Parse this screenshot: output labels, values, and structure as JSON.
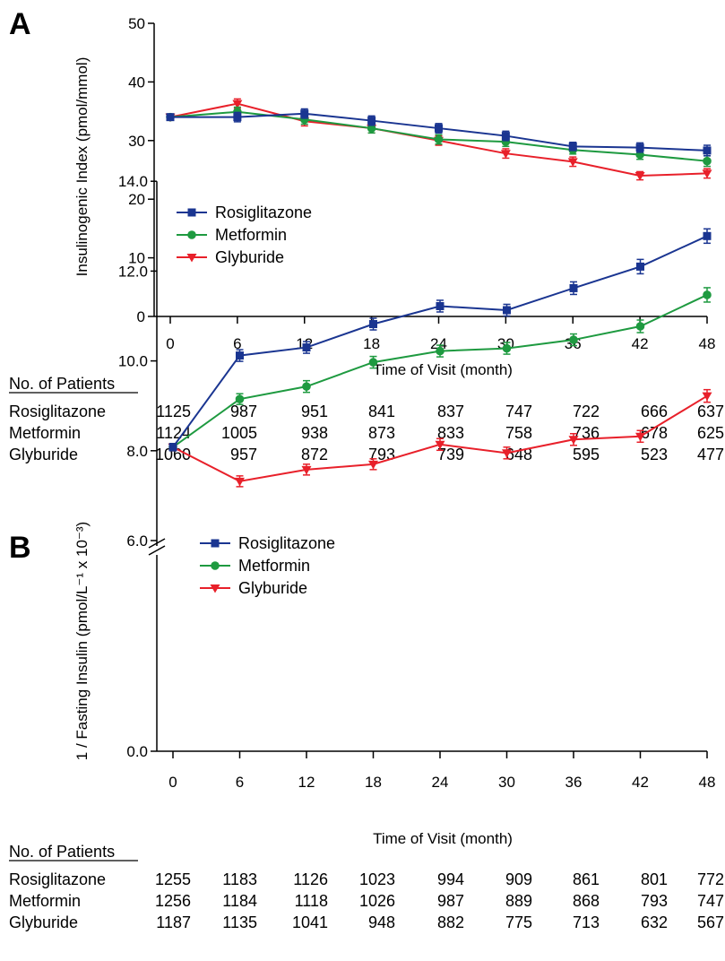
{
  "chart_data": [
    {
      "panel_label": "A",
      "type": "line",
      "ylabel": "Insulinogenic Index (pmol/mmol)",
      "xlabel": "Time of Visit (month)",
      "x": [
        0,
        6,
        12,
        18,
        24,
        30,
        36,
        42,
        48
      ],
      "xticks": [
        "0",
        "6",
        "12",
        "18",
        "24",
        "30",
        "36",
        "42",
        "48"
      ],
      "ylim": [
        0,
        50
      ],
      "yticks": [
        "0",
        "10",
        "20",
        "30",
        "40",
        "50"
      ],
      "ytick_values": [
        0,
        10,
        20,
        30,
        40,
        50
      ],
      "axis_break": false,
      "legend_position": "left",
      "series": [
        {
          "name": "Rosiglitazone",
          "color": "#1a3591",
          "marker": "square",
          "values": [
            34.0,
            34.0,
            34.6,
            33.4,
            32.1,
            30.8,
            29.0,
            28.8,
            28.3
          ],
          "errors": [
            0.5,
            0.8,
            0.8,
            0.8,
            0.8,
            0.8,
            0.7,
            0.8,
            0.9
          ]
        },
        {
          "name": "Metformin",
          "color": "#1e9a40",
          "marker": "circle",
          "values": [
            34.0,
            34.9,
            33.6,
            32.1,
            30.2,
            29.8,
            28.4,
            27.6,
            26.5
          ],
          "errors": [
            0.5,
            0.8,
            0.8,
            0.8,
            0.8,
            0.8,
            0.7,
            0.8,
            0.9
          ]
        },
        {
          "name": "Glyburide",
          "color": "#e8202a",
          "marker": "triangle-down",
          "values": [
            34.0,
            36.3,
            33.3,
            32.1,
            30.0,
            27.8,
            26.4,
            24.0,
            24.4
          ],
          "errors": [
            0.5,
            0.8,
            0.8,
            0.8,
            0.8,
            0.8,
            0.8,
            0.7,
            0.8
          ]
        }
      ],
      "patients": {
        "title": "No. of Patients",
        "rows": [
          {
            "name": "Rosiglitazone",
            "counts": [
              "1125",
              "987",
              "951",
              "841",
              "837",
              "747",
              "722",
              "666",
              "637"
            ]
          },
          {
            "name": "Metformin",
            "counts": [
              "1124",
              "1005",
              "938",
              "873",
              "833",
              "758",
              "736",
              "678",
              "625"
            ]
          },
          {
            "name": "Glyburide",
            "counts": [
              "1060",
              "957",
              "872",
              "793",
              "739",
              "648",
              "595",
              "523",
              "477"
            ]
          }
        ]
      }
    },
    {
      "panel_label": "B",
      "type": "line",
      "ylabel": "1 / Fasting Insulin (pmol/L⁻¹ x 10⁻³)",
      "xlabel": "Time of Visit (month)",
      "x": [
        0,
        6,
        12,
        18,
        24,
        30,
        36,
        42,
        48
      ],
      "xticks": [
        "0",
        "6",
        "12",
        "18",
        "24",
        "30",
        "36",
        "42",
        "48"
      ],
      "ylim": [
        6.0,
        14.0
      ],
      "yticks": [
        "6.0",
        "8.0",
        "10.0",
        "12.0",
        "14.0"
      ],
      "ytick_values": [
        6,
        8,
        10,
        12,
        14
      ],
      "axis_break": true,
      "axis_break_label": "0.0",
      "legend_position": "top-left",
      "series": [
        {
          "name": "Rosiglitazone",
          "color": "#1a3591",
          "marker": "square",
          "values": [
            8.08,
            10.12,
            10.3,
            10.82,
            11.22,
            11.13,
            11.62,
            12.1,
            12.78
          ],
          "errors": [
            0.08,
            0.13,
            0.13,
            0.13,
            0.13,
            0.13,
            0.14,
            0.16,
            0.16
          ]
        },
        {
          "name": "Metformin",
          "color": "#1e9a40",
          "marker": "circle",
          "values": [
            8.08,
            9.15,
            9.43,
            9.97,
            10.22,
            10.28,
            10.47,
            10.77,
            11.47
          ],
          "errors": [
            0.08,
            0.12,
            0.13,
            0.13,
            0.13,
            0.13,
            0.13,
            0.14,
            0.16
          ]
        },
        {
          "name": "Glyburide",
          "color": "#e8202a",
          "marker": "triangle-down",
          "values": [
            8.08,
            7.32,
            7.58,
            7.7,
            8.14,
            7.95,
            8.25,
            8.32,
            9.22
          ],
          "errors": [
            0.08,
            0.12,
            0.12,
            0.12,
            0.13,
            0.13,
            0.13,
            0.13,
            0.14
          ]
        }
      ],
      "patients": {
        "title": "No. of Patients",
        "rows": [
          {
            "name": "Rosiglitazone",
            "counts": [
              "1255",
              "1183",
              "1126",
              "1023",
              "994",
              "909",
              "861",
              "801",
              "772"
            ]
          },
          {
            "name": "Metformin",
            "counts": [
              "1256",
              "1184",
              "1118",
              "1026",
              "987",
              "889",
              "868",
              "793",
              "747"
            ]
          },
          {
            "name": "Glyburide",
            "counts": [
              "1187",
              "1135",
              "1041",
              "948",
              "882",
              "775",
              "713",
              "632",
              "567"
            ]
          }
        ]
      }
    }
  ]
}
